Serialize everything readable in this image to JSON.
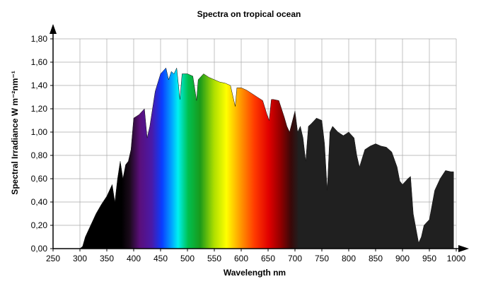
{
  "chart_data": {
    "type": "area",
    "title": "Spectra on tropical ocean",
    "xlabel": "Wavelength nm",
    "ylabel": "Spectral Irradiance W m⁻²nm⁻¹",
    "xlim": [
      250,
      1000
    ],
    "ylim": [
      0,
      1.8
    ],
    "grid": true,
    "xticks": [
      "250",
      "300",
      "350",
      "400",
      "450",
      "500",
      "550",
      "600",
      "650",
      "700",
      "750",
      "800",
      "850",
      "900",
      "950",
      "1000"
    ],
    "yticks": [
      "0,00",
      "0,20",
      "0,40",
      "0,60",
      "0,80",
      "1,00",
      "1,20",
      "1,40",
      "1,60",
      "1,80"
    ],
    "series": [
      {
        "name": "Spectral irradiance",
        "x": [
          290,
          300,
          305,
          310,
          320,
          330,
          340,
          350,
          360,
          365,
          370,
          375,
          380,
          385,
          390,
          395,
          400,
          410,
          420,
          425,
          430,
          440,
          450,
          460,
          465,
          470,
          475,
          480,
          486,
          490,
          500,
          510,
          517,
          520,
          530,
          540,
          550,
          560,
          570,
          580,
          589,
          592,
          600,
          610,
          620,
          630,
          640,
          648,
          652,
          656,
          660,
          670,
          680,
          685,
          690,
          700,
          705,
          710,
          715,
          720,
          725,
          730,
          740,
          750,
          755,
          760,
          765,
          770,
          780,
          790,
          800,
          810,
          815,
          820,
          830,
          840,
          850,
          860,
          870,
          880,
          890,
          895,
          900,
          910,
          915,
          920,
          930,
          935,
          940,
          950,
          960,
          970,
          980,
          990,
          995
        ],
        "y": [
          0,
          0,
          0.02,
          0.1,
          0.2,
          0.3,
          0.38,
          0.45,
          0.55,
          0.4,
          0.6,
          0.75,
          0.6,
          0.72,
          0.75,
          0.85,
          1.12,
          1.15,
          1.2,
          0.95,
          1.05,
          1.35,
          1.5,
          1.55,
          1.45,
          1.52,
          1.5,
          1.55,
          1.28,
          1.5,
          1.5,
          1.48,
          1.27,
          1.45,
          1.5,
          1.47,
          1.45,
          1.43,
          1.42,
          1.4,
          1.22,
          1.38,
          1.38,
          1.36,
          1.33,
          1.3,
          1.27,
          1.15,
          1.1,
          1.28,
          1.28,
          1.27,
          1.13,
          1.05,
          1.0,
          1.18,
          1.0,
          1.05,
          0.95,
          0.75,
          1.05,
          1.07,
          1.12,
          1.1,
          0.9,
          0.5,
          1.0,
          1.05,
          1.0,
          0.97,
          1.0,
          0.95,
          0.8,
          0.7,
          0.85,
          0.88,
          0.9,
          0.88,
          0.87,
          0.83,
          0.7,
          0.58,
          0.55,
          0.6,
          0.62,
          0.3,
          0.05,
          0.1,
          0.2,
          0.25,
          0.5,
          0.6,
          0.67,
          0.66,
          0.66
        ]
      }
    ]
  }
}
